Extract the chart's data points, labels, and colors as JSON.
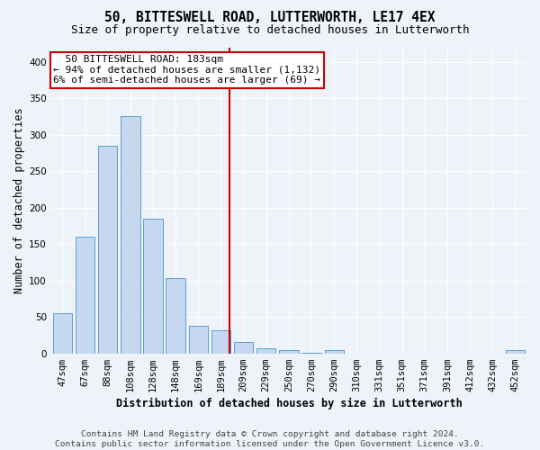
{
  "title": "50, BITTESWELL ROAD, LUTTERWORTH, LE17 4EX",
  "subtitle": "Size of property relative to detached houses in Lutterworth",
  "xlabel": "Distribution of detached houses by size in Lutterworth",
  "ylabel": "Number of detached properties",
  "categories": [
    "47sqm",
    "67sqm",
    "88sqm",
    "108sqm",
    "128sqm",
    "148sqm",
    "169sqm",
    "189sqm",
    "209sqm",
    "229sqm",
    "250sqm",
    "270sqm",
    "290sqm",
    "310sqm",
    "331sqm",
    "351sqm",
    "371sqm",
    "391sqm",
    "412sqm",
    "432sqm",
    "452sqm"
  ],
  "values": [
    55,
    160,
    285,
    325,
    185,
    103,
    38,
    32,
    15,
    7,
    4,
    1,
    5,
    0,
    0,
    0,
    0,
    0,
    0,
    0,
    4
  ],
  "bar_color": "#c5d8f0",
  "bar_edge_color": "#5a9fd4",
  "background_color": "#eef2f9",
  "grid_color": "#ffffff",
  "red_line_x": 7.4,
  "annotation_text_line1": "  50 BITTESWELL ROAD: 183sqm  ",
  "annotation_text_line2": "← 94% of detached houses are smaller (1,132)",
  "annotation_text_line3": "6% of semi-detached houses are larger (69) →",
  "annotation_box_color": "#ffffff",
  "annotation_box_edge_color": "#cc0000",
  "footer_line1": "Contains HM Land Registry data © Crown copyright and database right 2024.",
  "footer_line2": "Contains public sector information licensed under the Open Government Licence v3.0.",
  "ylim_max": 420,
  "yticks": [
    0,
    50,
    100,
    150,
    200,
    250,
    300,
    350,
    400
  ],
  "title_fontsize": 10.5,
  "subtitle_fontsize": 9,
  "ylabel_fontsize": 8.5,
  "xlabel_fontsize": 8.5,
  "tick_fontsize": 7.5,
  "annotation_fontsize": 8,
  "footer_fontsize": 6.8
}
